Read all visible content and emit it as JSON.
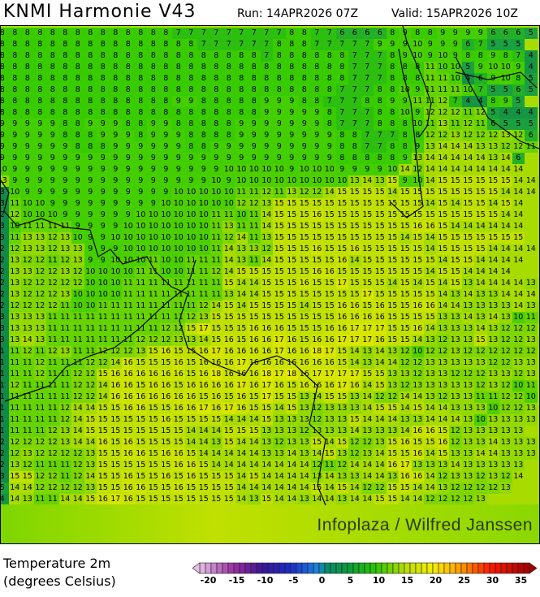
{
  "header": {
    "title": "KNMI Harmonie V43",
    "run": "Run: 14APR2026 07Z",
    "valid": "Valid: 15APR2026 10Z"
  },
  "map": {
    "field": "Temperature 2m",
    "watermark": "Infoplaza / Wilfred Janssen",
    "grid_rows": [
      "8 8 8 8 8 8 8 8 8 8 8 8 8 8 7 7 7 7 7 7 7 7 7 8 8 7 7 6 6 6 6 8 9 8 8 9 9 9 9 6 6 6 5",
      "8 8 8 8 8 8 8 8 8 8 8 8 8 8 8 8 7 7 7 7 7 7 8 8 8 7 7 7 7 7 9 9 9 10 9 9 9 6 7 5 5 5",
      "8 8 8 8 8 8 8 8 8 8 8 8 8 8 8 8 8 8 8 8 8 7 8 8 8 8 8 8 7 7 7 8 9 10 9 10 9 8 8 9 8 7 4",
      "8 8 8 8 8 8 8 8 8 8 8 8 8 8 8 8 8 8 8 8 8 8 8 8 8 8 8 8 7 7 7 8 8 8 11 10 10 5 9 10 10 9 4",
      "8 8 8 8 8 8 8 8 8 8 8 8 8 8 8 8 8 8 8 8 8 8 8 8 8 8 8 8 7 7 7 8 8 8 11 11 10 4 6 9 10 8 5",
      "8 8 8 8 8 8 8 8 8 8 8 8 8 8 8 8 8 8 8 8 8 8 8 8 8 8 8 7 7 7 8 8 10 9 11 11 11 10 7 5 5 6 5",
      "8 8 8 8 8 8 8 8 8 8 8 8 8 8 9 9 8 8 8 8 8 9 9 9 8 8 7 7 7 8 8 9 9 11 11 12 7 4 4 8 9 5",
      "8 8 8 8 8 8 8 8 8 8 8 8 8 8 8 8 8 8 8 8 8 9 9 9 9 9 8 7 7 7 8 8 10 9 12 12 12 11 12 5 4 4 4",
      "9 9 9 9 9 8 8 9 9 9 8 8 9 9 8 8 8 8 8 9 9 9 9 9 9 9 8 7 7 7 8 8 8 10 11 13 11 12 11 6 5 5 5",
      "9 9 9 9 9 8 8 8 9 9 9 8 9 9 9 8 8 8 8 9 9 9 9 9 9 9 9 8 8 7 7 7 8 8 12 12 13 12 12 12 13 12 6 12",
      "9 9 9 9 9 9 8 8 8 9 9 9 9 9 9 8 8 9 9 9 9 9 9 9 9 9 9 8 8 7 7 8 8 9 13 14 14 14 13 13 12 12 11",
      "9 9 9 9 9 9 9 9 9 9 9 9 9 9 9 9 9 9 9 9 9 9 9 9 9 9 9 8 8 8 8 8 9 13 14 14 14 14 14 13 14 6",
      "10 9 9 9 9 9 9 9 9 9 9 9 9 9 9 9 9 9 10 10 10 10 10 9 10 10 10 9 9 9 9 10 14 12 14 14 14 14 14 14 14 14",
      "13 9 9 9 9 9 9 9 9 9 9 9 9 9 9 9 9 10 9 10 10 10 10 10 10 10 10 10 13 14 13 15 9 10 14 15 15 15 15 15 15 14 14 13",
      "3 10 9 9 9 9 9 9 9 9 9 9 9 9 10 10 10 10 10 11 11 12 11 13 12 12 14 15 15 15 15 14 15 15 15 15 15 15 15 15 14 14 14",
      "3 11 10 10 9 9 9 9 9 9 9 9 9 10 10 10 10 10 10 12 12 13 15 15 15 15 15 15 15 15 15 15 15 15 14 15 14 15 15 14 15 14",
      "2 12 10 10 10 9 9 9 9 9 9 10 10 10 10 10 10 11 11 10 11 14 15 15 15 16 15 15 15 15 15 15 15 15 15 15 15 15 15 15 14 14",
      "3 10 11 11 11 11 9 9 9 9 10 10 10 10 10 10 10 11 13 11 11 14 15 15 15 15 15 15 15 15 15 15 15 16 16 15 14 14 14 14 14 14",
      "3 11 13 13 12 13 10 9 9 10 10 10 10 10 10 10 10 11 12 14 11 13 15 15 15 15 15 15 15 15 15 15 14 15 14 15 15 15 15 15 15 15",
      "2 12 13 13 12 13 13 9 9 9 10 10 10 10 10 10 10 11 14 13 13 12 15 15 15 16 15 15 16 15 15 15 15 15 14 15 15 15 15 14 14 14 14",
      "2 13 12 12 11 12 13 9 9 10 10 10 11 10 10 11 11 11 14 13 11 14 15 15 15 15 15 16 14 15 15 15 15 15 15 14 15 15 14 14 14 14",
      "2 13 13 12 12 13 12 10 10 10 10 11 11 10 10 11 11 12 14 15 15 15 15 15 15 16 16 15 15 15 15 15 15 15 14 15 15 14 14 14 14",
      "2 13 12 12 12 12 12 10 10 10 11 11 11 11 11 11 11 11 15 14 14 15 15 15 16 15 15 17 15 15 15 14 15 14 15 14 15 13 14 14 14 14 13 14",
      "2 13 12 12 12 13 10 10 10 10 11 11 11 11 11 11 11 11 13 14 14 15 15 15 15 15 15 15 15 17 15 15 15 15 15 14 13 14 13 13 14 14 14",
      "2 12 12 12 12 11 10 10 11 11 11 11 11 11 11 11 12 14 15 14 15 15 15 15 14 15 15 16 16 15 16 15 15 16 16 14 14 13 13 13 13 14 13 13",
      "3 13 13 13 11 11 11 11 11 11 11 11 11 11 11 12 13 15 15 15 15 15 15 15 15 15 15 16 16 16 16 15 15 15 15 13 13 14 13 14 13 10 11 12",
      "3 13 13 13 11 11 11 11 11 11 11 11 11 12 12 15 17 15 15 15 16 16 16 15 15 15 16 16 17 17 17 15 15 16 14 13 13 13 14 13 12 12 12",
      "3 13 14 13 11 11 11 11 11 11 11 12 12 12 13 13 14 15 16 15 16 16 17 16 15 16 16 17 17 17 16 15 15 14 13 12 13 13 15 13 12 12 13 13",
      "1 11 12 11 12 13 11 11 12 12 12 13 15 16 15 15 16 17 16 16 16 16 17 16 16 18 17 15 14 13 14 13 12 10 12 12 13 12 12 12 12 12 12",
      "1 11 11 12 11 11 11 12 12 14 16 15 15 15 16 15 16 16 16 17 16 16 16 16 16 16 16 15 14 13 14 14 12 12 13 13 13 13 13 12 12 13 13",
      "1 11 11 12 11 11 12 12 15 16 16 16 16 16 16 15 16 18 16 16 16 18 17 18 16 17 17 17 17 15 15 13 13 12 13 13 12 12 12 13 13 12 13",
      "1 12 11 11 11 11 12 12 14 16 16 15 16 16 15 16 16 16 16 17 16 17 16 15 16 16 16 17 16 14 15 13 12 13 13 13 13 13 12 13 12 10 11",
      "1 11 11 11 11 11 12 12 14 16 16 16 16 16 16 16 15 16 15 16 15 17 15 15 13 14 15 15 13 14 12 12 14 14 13 12 13 13 11 11 12 12 10",
      "1 11 11 11 11 12 14 14 15 15 16 16 15 15 16 16 17 16 17 16 15 15 14 15 13 12 13 13 13 14 15 15 14 15 14 14 13 13 13 10 12 12 13",
      "1 11 11 11 11 12 14 15 15 15 15 15 15 16 15 15 15 15 14 14 14 15 13 13 13 12 13 13 15 14 14 14 13 13 14 14 14 13 10 13 13 13 13",
      "1 11 11 11 12 13 14 15 15 15 15 15 15 15 15 14 14 14 15 15 15 13 13 13 12 13 13 13 14 13 13 13 14 16 16 15 12 13 13 13 13 13",
      "2 12 12 12 12 13 14 14 16 15 16 15 15 15 15 14 14 13 15 14 14 13 12 13 13 15 14 15 12 12 13 15 16 15 15 16 12 13 13 14 13 13 13",
      "2 12 13 12 12 12 12 13 15 15 16 16 15 16 16 15 14 14 14 14 14 13 13 14 13 14 15 13 12 13 14 15 15 16 14 15 13 13 14 14 13 13 13",
      "2 13 12 11 11 11 12 13 15 15 15 15 15 15 16 16 15 14 14 14 14 14 14 14 14 12 11 12 14 14 14 16 17 13 13 13 14 13 13 13 13 13",
      "3 15 15 12 12 11 12 14 15 15 16 15 15 16 15 16 15 15 15 14 15 14 14 14 14 13 14 13 13 14 14 13 16 16 14 12 13 13 12 13 12 14",
      "5 14 14 12 12 12 12 13 15 15 16 16 15 15 16 15 15 15 15 14 14 14 14 14 14 15 14 15 14 12 12 15 15 14 14 13 12 12 12 12 13",
      "4 14 13 11 11 14 14 15 16 17 16 15 15 15 15 15 15 15 15 14 13 15 14 14 13 14 14 13 14 14 15 15 14 14 12 12 12 12 13"
    ]
  },
  "legend": {
    "title": "Temperature 2m",
    "unit": "(degrees Celsius)",
    "range": [
      -21,
      37
    ],
    "ticks": [
      "-20",
      "-15",
      "-10",
      "-5",
      "0",
      "5",
      "10",
      "15",
      "20",
      "25",
      "30",
      "35"
    ],
    "color_stops": [
      [
        -21,
        "#e6c0e6"
      ],
      [
        -15,
        "#9a2ea0"
      ],
      [
        -10,
        "#3c1496"
      ],
      [
        -5,
        "#1a2ec8"
      ],
      [
        0,
        "#1a8ae0"
      ],
      [
        1,
        "#0a8a6e"
      ],
      [
        5,
        "#0a9a3c"
      ],
      [
        10,
        "#2ac800"
      ],
      [
        15,
        "#b8dc00"
      ],
      [
        20,
        "#f4f000"
      ],
      [
        23,
        "#ffc000"
      ],
      [
        26,
        "#ff8000"
      ],
      [
        30,
        "#ff1a00"
      ],
      [
        37,
        "#a00000"
      ]
    ]
  }
}
